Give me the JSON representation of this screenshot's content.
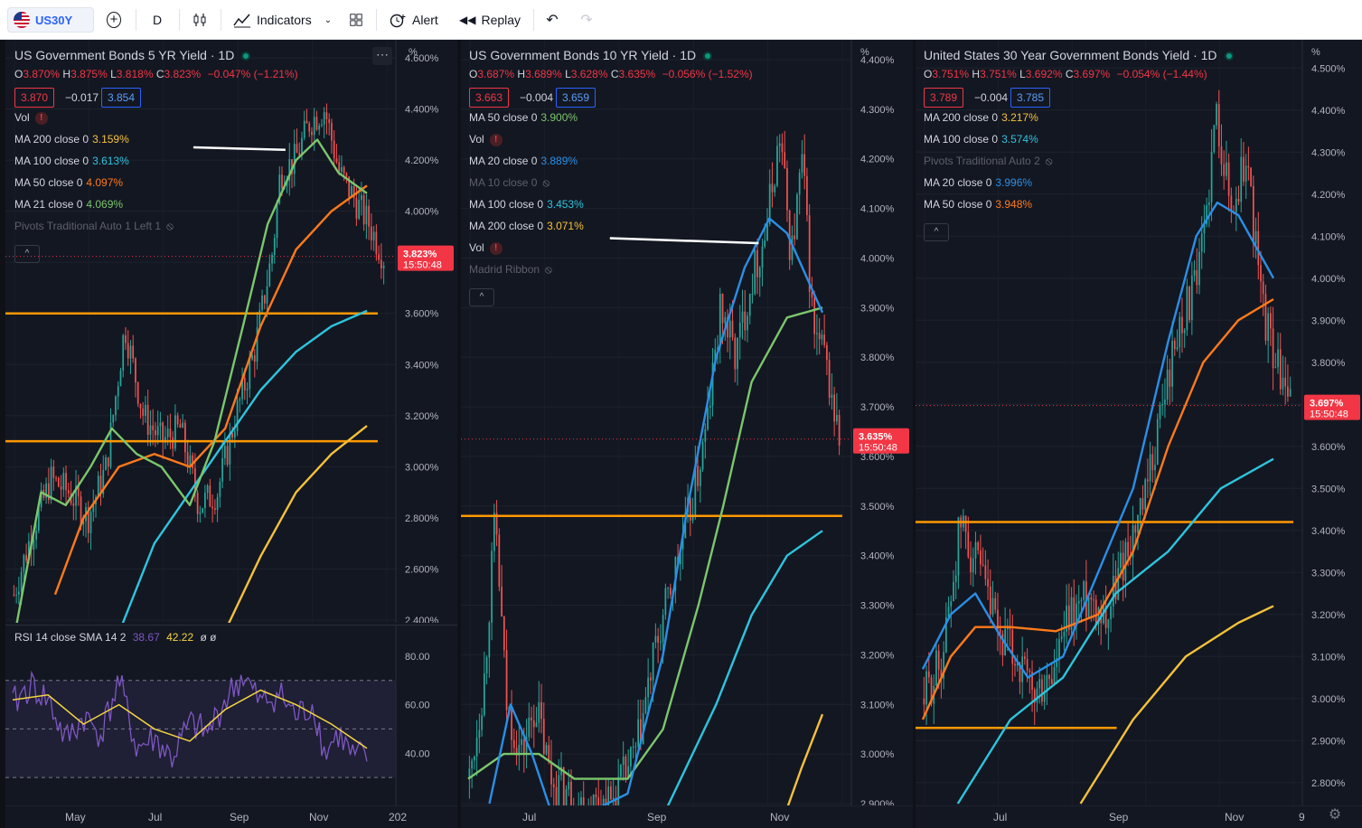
{
  "toolbar": {
    "symbol": "US30Y",
    "interval": "D",
    "indicators_label": "Indicators",
    "alert_label": "Alert",
    "replay_label": "Replay"
  },
  "colors": {
    "up": "#26a69a",
    "down": "#ef5350",
    "ma_orange_200": "#f5c13b",
    "ma_blue": "#2a8fe6",
    "ma_cyan": "#2ec4dd",
    "ma_orange": "#ff7a1a",
    "ma_green": "#7cc66c",
    "hline": "#ff9800",
    "white_line": "#ffffff",
    "rsi": "#7e57c2",
    "rsi_ma": "#f5d442"
  },
  "panels": [
    {
      "title": "US Government Bonds 5 YR Yield · 1D",
      "ohlc": {
        "o": "3.870%",
        "h": "3.875%",
        "l": "3.818%",
        "c": "3.823%",
        "chg": "−0.047% (−1.21%)"
      },
      "bid": "3.870",
      "spread": "−0.017",
      "ask": "3.854",
      "indicators": [
        {
          "label": "Vol",
          "value": "",
          "warn": true
        },
        {
          "label": "MA 200 close 0",
          "value": "3.159%",
          "color": "#f5c13b"
        },
        {
          "label": "MA 100 close 0",
          "value": "3.613%",
          "color": "#2ec4dd"
        },
        {
          "label": "MA 50 close 0",
          "value": "4.097%",
          "color": "#ff7a1a"
        },
        {
          "label": "MA 21 close 0",
          "value": "4.069%",
          "color": "#7cc66c"
        },
        {
          "label": "Pivots Traditional Auto 1 Left 1",
          "value": "",
          "hidden": true
        }
      ],
      "price_tag": {
        "value": "3.823%",
        "time": "15:50:48"
      },
      "unit": "%",
      "rsi_label": "RSI 14 close SMA 14 2",
      "rsi_value": "38.67",
      "rsi_ma_value": "42.22",
      "rsi_extra": "ø ø",
      "rsi_ticks": [
        "80.00",
        "60.00",
        "40.00"
      ]
    },
    {
      "title": "US Government Bonds 10 YR Yield · 1D",
      "ohlc": {
        "o": "3.687%",
        "h": "3.689%",
        "l": "3.628%",
        "c": "3.635%",
        "chg": "−0.056% (−1.52%)"
      },
      "bid": "3.663",
      "spread": "−0.004",
      "ask": "3.659",
      "indicators": [
        {
          "label": "MA 50 close 0",
          "value": "3.900%",
          "color": "#7cc66c"
        },
        {
          "label": "Vol",
          "value": "",
          "warn": true
        },
        {
          "label": "MA 20 close 0",
          "value": "3.889%",
          "color": "#2a8fe6"
        },
        {
          "label": "MA 10 close 0",
          "value": "",
          "hidden": true
        },
        {
          "label": "MA 100 close 0",
          "value": "3.453%",
          "color": "#2ec4dd"
        },
        {
          "label": "MA 200 close 0",
          "value": "3.071%",
          "color": "#f5c13b"
        },
        {
          "label": "Vol",
          "value": "",
          "warn": true
        },
        {
          "label": "Madrid Ribbon",
          "value": "",
          "hidden": true
        }
      ],
      "price_tag": {
        "value": "3.635%",
        "time": "15:50:48"
      },
      "unit": "%"
    },
    {
      "title": "United States 30 Year Government Bonds Yield · 1D",
      "ohlc": {
        "o": "3.751%",
        "h": "3.751%",
        "l": "3.692%",
        "c": "3.697%",
        "chg": "−0.054% (−1.44%)"
      },
      "bid": "3.789",
      "spread": "−0.004",
      "ask": "3.785",
      "indicators": [
        {
          "label": "MA 200 close 0",
          "value": "3.217%",
          "color": "#f5c13b"
        },
        {
          "label": "MA 100 close 0",
          "value": "3.574%",
          "color": "#2ec4dd"
        },
        {
          "label": "Pivots Traditional Auto 2",
          "value": "",
          "hidden": true
        },
        {
          "label": "MA 20 close 0",
          "value": "3.996%",
          "color": "#2a8fe6"
        },
        {
          "label": "MA 50 close 0",
          "value": "3.948%",
          "color": "#ff7a1a"
        }
      ],
      "price_tag": {
        "value": "3.697%",
        "time": "15:50:48"
      },
      "unit": "%"
    }
  ],
  "chart_data": [
    {
      "type": "candlestick",
      "title": "US Government Bonds 5 YR Yield · 1D",
      "ylim": [
        2.4,
        4.6
      ],
      "y_ticks": [
        "2.400%",
        "2.600%",
        "2.800%",
        "3.000%",
        "3.200%",
        "3.400%",
        "3.600%",
        "3.800%",
        "4.000%",
        "4.200%",
        "4.400%",
        "4.600%"
      ],
      "x_ticks": [
        "May",
        "Jul",
        "Sep",
        "Nov",
        "202"
      ],
      "close_path": [
        [
          0,
          2.5
        ],
        [
          0.05,
          2.75
        ],
        [
          0.1,
          2.95
        ],
        [
          0.15,
          2.9
        ],
        [
          0.2,
          2.8
        ],
        [
          0.25,
          3.0
        ],
        [
          0.3,
          3.55
        ],
        [
          0.35,
          3.2
        ],
        [
          0.4,
          3.1
        ],
        [
          0.45,
          3.15
        ],
        [
          0.5,
          2.85
        ],
        [
          0.55,
          2.9
        ],
        [
          0.6,
          3.2
        ],
        [
          0.65,
          3.45
        ],
        [
          0.7,
          3.85
        ],
        [
          0.72,
          4.15
        ],
        [
          0.76,
          4.2
        ],
        [
          0.8,
          4.35
        ],
        [
          0.84,
          4.4
        ],
        [
          0.88,
          4.15
        ],
        [
          0.92,
          4.05
        ],
        [
          0.96,
          3.95
        ],
        [
          1.0,
          3.82
        ]
      ],
      "series": [
        {
          "name": "MA 200",
          "path": [
            [
              0.58,
              2.3
            ],
            [
              0.7,
              2.65
            ],
            [
              0.8,
              2.9
            ],
            [
              0.9,
              3.05
            ],
            [
              1.0,
              3.16
            ]
          ]
        },
        {
          "name": "MA 100",
          "path": [
            [
              0.3,
              2.35
            ],
            [
              0.4,
              2.7
            ],
            [
              0.5,
              2.9
            ],
            [
              0.6,
              3.1
            ],
            [
              0.7,
              3.3
            ],
            [
              0.8,
              3.45
            ],
            [
              0.9,
              3.55
            ],
            [
              1.0,
              3.61
            ]
          ]
        },
        {
          "name": "MA 50",
          "path": [
            [
              0.12,
              2.5
            ],
            [
              0.2,
              2.8
            ],
            [
              0.3,
              3.0
            ],
            [
              0.4,
              3.05
            ],
            [
              0.5,
              3.0
            ],
            [
              0.6,
              3.15
            ],
            [
              0.7,
              3.55
            ],
            [
              0.8,
              3.85
            ],
            [
              0.9,
              4.0
            ],
            [
              1.0,
              4.1
            ]
          ]
        },
        {
          "name": "MA 21",
          "path": [
            [
              0,
              2.3
            ],
            [
              0.08,
              2.9
            ],
            [
              0.15,
              2.85
            ],
            [
              0.22,
              3.0
            ],
            [
              0.28,
              3.15
            ],
            [
              0.35,
              3.05
            ],
            [
              0.42,
              3.0
            ],
            [
              0.5,
              2.85
            ],
            [
              0.57,
              3.1
            ],
            [
              0.65,
              3.55
            ],
            [
              0.72,
              3.95
            ],
            [
              0.8,
              4.2
            ],
            [
              0.86,
              4.28
            ],
            [
              0.92,
              4.15
            ],
            [
              1.0,
              4.07
            ]
          ]
        }
      ],
      "hlines": [
        3.6,
        3.1
      ],
      "white_line": [
        [
          0.51,
          4.25
        ],
        [
          0.77,
          4.24
        ]
      ],
      "rsi": {
        "ylim": [
          20,
          90
        ],
        "levels": [
          70,
          50,
          30
        ],
        "rsi_path": [
          [
            0,
            60
          ],
          [
            0.05,
            68
          ],
          [
            0.1,
            62
          ],
          [
            0.15,
            45
          ],
          [
            0.2,
            55
          ],
          [
            0.25,
            48
          ],
          [
            0.3,
            70
          ],
          [
            0.35,
            42
          ],
          [
            0.4,
            46
          ],
          [
            0.45,
            38
          ],
          [
            0.5,
            52
          ],
          [
            0.55,
            48
          ],
          [
            0.6,
            62
          ],
          [
            0.65,
            72
          ],
          [
            0.7,
            60
          ],
          [
            0.75,
            65
          ],
          [
            0.8,
            55
          ],
          [
            0.85,
            60
          ],
          [
            0.88,
            40
          ],
          [
            0.92,
            48
          ],
          [
            0.96,
            38
          ],
          [
            1.0,
            39
          ]
        ],
        "ma_path": [
          [
            0,
            62
          ],
          [
            0.1,
            64
          ],
          [
            0.2,
            52
          ],
          [
            0.3,
            60
          ],
          [
            0.4,
            50
          ],
          [
            0.5,
            45
          ],
          [
            0.6,
            58
          ],
          [
            0.7,
            66
          ],
          [
            0.8,
            60
          ],
          [
            0.9,
            52
          ],
          [
            1.0,
            42
          ]
        ]
      }
    },
    {
      "type": "candlestick",
      "title": "US Government Bonds 10 YR Yield · 1D",
      "ylim": [
        2.9,
        4.4
      ],
      "y_ticks": [
        "2.900%",
        "3.000%",
        "3.100%",
        "3.200%",
        "3.300%",
        "3.400%",
        "3.500%",
        "3.600%",
        "3.700%",
        "3.800%",
        "3.900%",
        "4.000%",
        "4.100%",
        "4.200%",
        "4.300%",
        "4.400%"
      ],
      "x_ticks": [
        "Jul",
        "Sep",
        "Nov"
      ],
      "close_path": [
        [
          0,
          2.95
        ],
        [
          0.04,
          3.15
        ],
        [
          0.07,
          3.48
        ],
        [
          0.1,
          3.1
        ],
        [
          0.14,
          3.0
        ],
        [
          0.18,
          3.1
        ],
        [
          0.22,
          2.95
        ],
        [
          0.3,
          2.9
        ],
        [
          0.38,
          2.9
        ],
        [
          0.45,
          3.0
        ],
        [
          0.5,
          3.2
        ],
        [
          0.55,
          3.35
        ],
        [
          0.6,
          3.5
        ],
        [
          0.64,
          3.65
        ],
        [
          0.68,
          3.9
        ],
        [
          0.72,
          3.8
        ],
        [
          0.76,
          3.95
        ],
        [
          0.8,
          4.05
        ],
        [
          0.84,
          4.25
        ],
        [
          0.87,
          4.0
        ],
        [
          0.9,
          4.2
        ],
        [
          0.93,
          3.85
        ],
        [
          0.96,
          3.8
        ],
        [
          1.0,
          3.63
        ]
      ],
      "series": [
        {
          "name": "MA 200",
          "path": [
            [
              0.88,
              2.85
            ],
            [
              0.94,
              2.97
            ],
            [
              1.0,
              3.08
            ]
          ]
        },
        {
          "name": "MA 100",
          "path": [
            [
              0.5,
              2.8
            ],
            [
              0.6,
              2.95
            ],
            [
              0.7,
              3.1
            ],
            [
              0.8,
              3.28
            ],
            [
              0.9,
              3.4
            ],
            [
              1.0,
              3.45
            ]
          ]
        },
        {
          "name": "MA 50",
          "path": [
            [
              0,
              2.95
            ],
            [
              0.1,
              3.0
            ],
            [
              0.2,
              3.0
            ],
            [
              0.3,
              2.95
            ],
            [
              0.45,
              2.95
            ],
            [
              0.55,
              3.05
            ],
            [
              0.65,
              3.3
            ],
            [
              0.72,
              3.5
            ],
            [
              0.8,
              3.75
            ],
            [
              0.9,
              3.88
            ],
            [
              1.0,
              3.9
            ]
          ]
        },
        {
          "name": "MA 20",
          "path": [
            [
              0.06,
              2.9
            ],
            [
              0.12,
              3.1
            ],
            [
              0.18,
              3.0
            ],
            [
              0.25,
              2.85
            ],
            [
              0.45,
              2.92
            ],
            [
              0.55,
              3.2
            ],
            [
              0.62,
              3.5
            ],
            [
              0.7,
              3.8
            ],
            [
              0.78,
              3.98
            ],
            [
              0.85,
              4.08
            ],
            [
              0.9,
              4.05
            ],
            [
              1.0,
              3.89
            ]
          ]
        }
      ],
      "hlines": [
        3.48
      ],
      "white_line": [
        [
          0.4,
          4.04
        ],
        [
          0.82,
          4.03
        ]
      ]
    },
    {
      "type": "candlestick",
      "title": "United States 30 Year Government Bonds Yield · 1D",
      "ylim": [
        2.75,
        4.55
      ],
      "y_ticks": [
        "2.800%",
        "2.900%",
        "3.000%",
        "3.100%",
        "3.200%",
        "3.300%",
        "3.400%",
        "3.500%",
        "3.600%",
        "3.700%",
        "3.800%",
        "3.900%",
        "4.000%",
        "4.100%",
        "4.200%",
        "4.300%",
        "4.400%",
        "4.500%"
      ],
      "x_ticks": [
        "Jul",
        "Sep",
        "Nov",
        "9"
      ],
      "close_path": [
        [
          0,
          3.0
        ],
        [
          0.05,
          3.1
        ],
        [
          0.1,
          3.42
        ],
        [
          0.15,
          3.3
        ],
        [
          0.2,
          3.15
        ],
        [
          0.25,
          3.1
        ],
        [
          0.3,
          3.0
        ],
        [
          0.35,
          3.05
        ],
        [
          0.4,
          3.2
        ],
        [
          0.45,
          3.25
        ],
        [
          0.5,
          3.2
        ],
        [
          0.55,
          3.35
        ],
        [
          0.6,
          3.45
        ],
        [
          0.65,
          3.7
        ],
        [
          0.7,
          3.9
        ],
        [
          0.75,
          4.0
        ],
        [
          0.8,
          4.4
        ],
        [
          0.84,
          4.15
        ],
        [
          0.88,
          4.3
        ],
        [
          0.92,
          3.95
        ],
        [
          0.96,
          3.8
        ],
        [
          1.0,
          3.7
        ]
      ],
      "series": [
        {
          "name": "MA 200",
          "path": [
            [
              0.45,
              2.75
            ],
            [
              0.6,
              2.95
            ],
            [
              0.75,
              3.1
            ],
            [
              0.9,
              3.18
            ],
            [
              1.0,
              3.22
            ]
          ]
        },
        {
          "name": "MA 100",
          "path": [
            [
              0.1,
              2.75
            ],
            [
              0.25,
              2.95
            ],
            [
              0.4,
              3.05
            ],
            [
              0.55,
              3.25
            ],
            [
              0.7,
              3.35
            ],
            [
              0.85,
              3.5
            ],
            [
              1.0,
              3.57
            ]
          ]
        },
        {
          "name": "MA 50",
          "path": [
            [
              0,
              2.95
            ],
            [
              0.08,
              3.1
            ],
            [
              0.15,
              3.17
            ],
            [
              0.25,
              3.17
            ],
            [
              0.38,
              3.16
            ],
            [
              0.5,
              3.2
            ],
            [
              0.6,
              3.35
            ],
            [
              0.7,
              3.6
            ],
            [
              0.8,
              3.8
            ],
            [
              0.9,
              3.9
            ],
            [
              1.0,
              3.95
            ]
          ]
        },
        {
          "name": "MA 20",
          "path": [
            [
              0,
              3.07
            ],
            [
              0.08,
              3.2
            ],
            [
              0.15,
              3.25
            ],
            [
              0.22,
              3.15
            ],
            [
              0.3,
              3.05
            ],
            [
              0.4,
              3.1
            ],
            [
              0.5,
              3.3
            ],
            [
              0.6,
              3.5
            ],
            [
              0.7,
              3.85
            ],
            [
              0.78,
              4.1
            ],
            [
              0.84,
              4.18
            ],
            [
              0.9,
              4.15
            ],
            [
              1.0,
              4.0
            ]
          ]
        }
      ],
      "hlines": [
        3.42,
        2.93
      ]
    }
  ]
}
